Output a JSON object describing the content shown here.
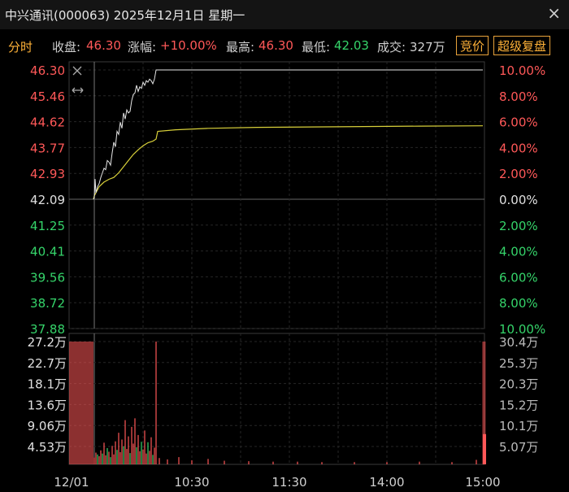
{
  "window": {
    "title": "中兴通讯(000063) 2025年12月1日 星期一",
    "close_glyph": "×"
  },
  "info": {
    "tab": "分时",
    "close_label": "收盘:",
    "close_value": "46.30",
    "change_label": "涨幅:",
    "change_value": "+10.00%",
    "high_label": "最高:",
    "high_value": "46.30",
    "low_label": "最低:",
    "low_value": "42.03",
    "volume_label": "成交:",
    "volume_value": "327万",
    "btn_auction": "竞价",
    "btn_super": "超级复盘"
  },
  "colors": {
    "up": "#ff5858",
    "down": "#35d46a",
    "neutral": "#e0e0e0",
    "price_line": "#e6e6e6",
    "avg_line": "#d8d03a",
    "accent": "#ffb238"
  },
  "chart_data": {
    "type": "line",
    "x_ticks": [
      "12/01",
      "10:30",
      "11:30",
      "14:00",
      "15:00"
    ],
    "price_axis_left": [
      "46.30",
      "45.46",
      "44.62",
      "43.77",
      "42.93",
      "42.09",
      "41.25",
      "40.41",
      "39.56",
      "38.72",
      "37.88"
    ],
    "percent_axis_right": [
      "10.00%",
      "8.00%",
      "6.00%",
      "4.00%",
      "2.00%",
      "0.00%",
      "2.00%",
      "4.00%",
      "6.00%",
      "8.00%",
      "10.00%"
    ],
    "volume_axis_left": [
      "27.2万",
      "22.7万",
      "18.1万",
      "13.6万",
      "9.06万",
      "4.53万"
    ],
    "volume_axis_right": [
      "30.4万",
      "25.3万",
      "20.3万",
      "15.2万",
      "10.1万",
      "5.07万"
    ],
    "prev_close": 42.09,
    "ylim": [
      37.88,
      46.3
    ],
    "volume_ylim_wan": [
      0,
      27.2
    ],
    "series": [
      {
        "name": "price",
        "points": [
          [
            -0.5,
            42.09
          ],
          [
            0,
            42.14
          ],
          [
            0.5,
            42.75
          ],
          [
            1,
            42.3
          ],
          [
            2,
            42.5
          ],
          [
            3,
            42.6
          ],
          [
            4,
            42.8
          ],
          [
            5,
            42.95
          ],
          [
            6,
            43.1
          ],
          [
            7,
            43.05
          ],
          [
            8,
            43.35
          ],
          [
            9,
            43.3
          ],
          [
            10,
            43.2
          ],
          [
            11,
            43.6
          ],
          [
            12,
            43.95
          ],
          [
            13,
            43.8
          ],
          [
            14,
            44.3
          ],
          [
            15,
            44.2
          ],
          [
            16,
            44.6
          ],
          [
            17,
            44.4
          ],
          [
            18,
            44.9
          ],
          [
            19,
            44.7
          ],
          [
            20,
            45.0
          ],
          [
            21,
            44.9
          ],
          [
            22,
            44.95
          ],
          [
            23,
            45.3
          ],
          [
            24,
            45.5
          ],
          [
            25,
            45.55
          ],
          [
            26,
            45.8
          ],
          [
            27,
            45.6
          ],
          [
            28,
            45.75
          ],
          [
            29,
            45.7
          ],
          [
            30,
            45.9
          ],
          [
            31,
            45.8
          ],
          [
            32,
            45.95
          ],
          [
            33,
            45.9
          ],
          [
            34,
            46.0
          ],
          [
            35,
            45.95
          ],
          [
            36,
            45.85
          ],
          [
            37,
            46.0
          ],
          [
            38,
            46.3
          ],
          [
            239,
            46.3
          ]
        ]
      },
      {
        "name": "average",
        "points": [
          [
            -0.5,
            42.09
          ],
          [
            0,
            42.2
          ],
          [
            3,
            42.5
          ],
          [
            6,
            42.65
          ],
          [
            9,
            42.74
          ],
          [
            12,
            42.8
          ],
          [
            15,
            42.95
          ],
          [
            18,
            43.15
          ],
          [
            21,
            43.35
          ],
          [
            24,
            43.55
          ],
          [
            27,
            43.7
          ],
          [
            30,
            43.83
          ],
          [
            33,
            43.93
          ],
          [
            36,
            43.98
          ],
          [
            38,
            44.05
          ],
          [
            39,
            44.3
          ],
          [
            50,
            44.35
          ],
          [
            70,
            44.4
          ],
          [
            100,
            44.43
          ],
          [
            150,
            44.45
          ],
          [
            200,
            44.47
          ],
          [
            239,
            44.48
          ]
        ]
      }
    ],
    "volume_wan": [
      {
        "t": -0.5,
        "v": 27.2,
        "up": true
      },
      {
        "t": 0,
        "v": 1.5,
        "up": true
      },
      {
        "t": 1,
        "v": 2.6,
        "up": true
      },
      {
        "t": 2,
        "v": 2.2,
        "up": false
      },
      {
        "t": 3,
        "v": 1.8,
        "up": true
      },
      {
        "t": 4,
        "v": 3.1,
        "up": true
      },
      {
        "t": 5,
        "v": 2.4,
        "up": false
      },
      {
        "t": 6,
        "v": 4.8,
        "up": true
      },
      {
        "t": 7,
        "v": 2.0,
        "up": true
      },
      {
        "t": 8,
        "v": 3.6,
        "up": false
      },
      {
        "t": 9,
        "v": 2.8,
        "up": true
      },
      {
        "t": 10,
        "v": 1.6,
        "up": false
      },
      {
        "t": 11,
        "v": 4.1,
        "up": true
      },
      {
        "t": 12,
        "v": 2.2,
        "up": true
      },
      {
        "t": 13,
        "v": 5.1,
        "up": true
      },
      {
        "t": 14,
        "v": 3.2,
        "up": false
      },
      {
        "t": 15,
        "v": 7.0,
        "up": true
      },
      {
        "t": 16,
        "v": 2.7,
        "up": true
      },
      {
        "t": 17,
        "v": 5.5,
        "up": true
      },
      {
        "t": 18,
        "v": 4.0,
        "up": false
      },
      {
        "t": 19,
        "v": 9.8,
        "up": true
      },
      {
        "t": 20,
        "v": 3.4,
        "up": true
      },
      {
        "t": 21,
        "v": 6.2,
        "up": true
      },
      {
        "t": 22,
        "v": 2.5,
        "up": false
      },
      {
        "t": 23,
        "v": 8.3,
        "up": true
      },
      {
        "t": 24,
        "v": 4.6,
        "up": true
      },
      {
        "t": 25,
        "v": 10.2,
        "up": true
      },
      {
        "t": 26,
        "v": 3.8,
        "up": false
      },
      {
        "t": 27,
        "v": 6.5,
        "up": true
      },
      {
        "t": 28,
        "v": 2.9,
        "up": true
      },
      {
        "t": 29,
        "v": 5.0,
        "up": false
      },
      {
        "t": 30,
        "v": 3.3,
        "up": true
      },
      {
        "t": 31,
        "v": 7.5,
        "up": true
      },
      {
        "t": 32,
        "v": 2.4,
        "up": true
      },
      {
        "t": 33,
        "v": 4.9,
        "up": false
      },
      {
        "t": 34,
        "v": 3.0,
        "up": true
      },
      {
        "t": 35,
        "v": 6.0,
        "up": true
      },
      {
        "t": 36,
        "v": 2.1,
        "up": false
      },
      {
        "t": 37,
        "v": 3.7,
        "up": true
      },
      {
        "t": 38,
        "v": 27.2,
        "up": true
      },
      {
        "t": 40,
        "v": 1.4,
        "up": true
      },
      {
        "t": 45,
        "v": 1.1,
        "up": true
      },
      {
        "t": 52,
        "v": 1.6,
        "up": true
      },
      {
        "t": 60,
        "v": 0.9,
        "up": true
      },
      {
        "t": 70,
        "v": 1.2,
        "up": true
      },
      {
        "t": 80,
        "v": 0.8,
        "up": true
      },
      {
        "t": 95,
        "v": 0.7,
        "up": true
      },
      {
        "t": 110,
        "v": 0.6,
        "up": true
      },
      {
        "t": 125,
        "v": 0.6,
        "up": true
      },
      {
        "t": 140,
        "v": 0.5,
        "up": true
      },
      {
        "t": 160,
        "v": 0.5,
        "up": true
      },
      {
        "t": 180,
        "v": 0.5,
        "up": true
      },
      {
        "t": 200,
        "v": 0.6,
        "up": true
      },
      {
        "t": 220,
        "v": 0.5,
        "up": true
      },
      {
        "t": 235,
        "v": 1.0,
        "up": true
      },
      {
        "t": 239,
        "v": 27.2,
        "up": true
      }
    ],
    "closing_auction_wan": 6.7,
    "grid": true
  }
}
